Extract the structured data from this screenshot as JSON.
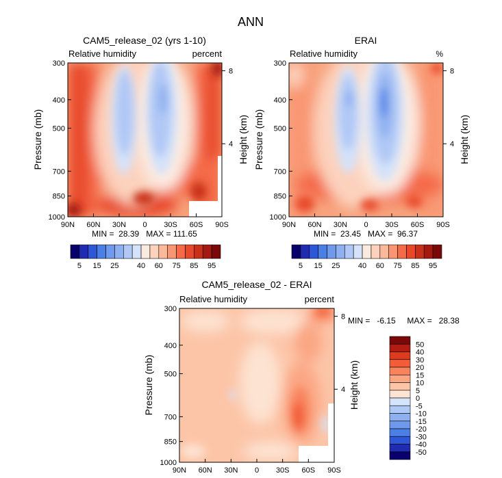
{
  "figure_title": "ANN",
  "chart_data": [
    {
      "type": "heatmap",
      "title": "CAM5_release_02 (yrs 1-10)",
      "left_string": "Relative humidity",
      "right_string": "percent",
      "ylabel": "Pressure (mb)",
      "ylabel_right": "Height (km)",
      "x_ticks": [
        "90N",
        "60N",
        "30N",
        "0",
        "30S",
        "60S",
        "90S"
      ],
      "y_ticks": [
        "300",
        "400",
        "500",
        "700",
        "850",
        "1000"
      ],
      "y_right_ticks": [
        "8",
        "4"
      ],
      "stats": "MIN =  28.39   MAX = 111.65",
      "contour_levels": [
        5,
        10,
        15,
        20,
        25,
        30,
        35,
        40,
        50,
        60,
        70,
        75,
        80,
        85,
        90,
        95
      ],
      "colorbar_labels": [
        "5",
        "15",
        "25",
        "40",
        "60",
        "75",
        "85",
        "95"
      ]
    },
    {
      "type": "heatmap",
      "title": "ERAI",
      "left_string": "Relative humidity",
      "right_string": "%",
      "ylabel": "Pressure (mb)",
      "ylabel_right": "Height (km)",
      "x_ticks": [
        "90N",
        "60N",
        "30N",
        "0",
        "30S",
        "60S",
        "90S"
      ],
      "y_ticks": [
        "300",
        "400",
        "500",
        "700",
        "850",
        "1000"
      ],
      "y_right_ticks": [
        "8",
        "4"
      ],
      "stats": "MIN =  23.45   MAX =  96.37",
      "contour_levels": [
        5,
        10,
        15,
        20,
        25,
        30,
        35,
        40,
        50,
        60,
        70,
        75,
        80,
        85,
        90,
        95
      ],
      "colorbar_labels": [
        "5",
        "15",
        "25",
        "40",
        "60",
        "75",
        "85",
        "95"
      ]
    },
    {
      "type": "heatmap",
      "title": "CAM5_release_02 - ERAI",
      "left_string": "Relative humidity",
      "right_string": "percent",
      "ylabel": "Pressure (mb)",
      "ylabel_right": "Height (km)",
      "x_ticks": [
        "90N",
        "60N",
        "30N",
        "0",
        "30S",
        "60S",
        "90S"
      ],
      "y_ticks": [
        "300",
        "400",
        "500",
        "700",
        "850",
        "1000"
      ],
      "y_right_ticks": [
        "8",
        "4"
      ],
      "stats": "MIN =   -6.15     MAX =   28.38",
      "contour_levels": [
        -50,
        -40,
        -30,
        -20,
        -15,
        -10,
        -5,
        0,
        5,
        10,
        15,
        20,
        30,
        40,
        50
      ],
      "colorbar_labels": [
        "50",
        "40",
        "30",
        "20",
        "15",
        "10",
        "5",
        "0",
        "-5",
        "-10",
        "-15",
        "-20",
        "-30",
        "-40",
        "-50"
      ]
    }
  ],
  "colors": {
    "abs_scale": [
      "#08006b",
      "#1f2cb0",
      "#2d57d6",
      "#4a7fe6",
      "#6e99ec",
      "#8fb0f0",
      "#b0c8f5",
      "#d4e2fa",
      "#fbeae0",
      "#fcd2bd",
      "#fcb99a",
      "#f99672",
      "#f46b48",
      "#e8492a",
      "#c93019",
      "#a41a10",
      "#7a0808"
    ],
    "diff_scale": [
      "#7a0808",
      "#b11c13",
      "#de3b1e",
      "#f25c36",
      "#f8845f",
      "#fba683",
      "#fcc5a8",
      "#fde3d2",
      "#d4e4fa",
      "#b0c8f5",
      "#8fb0f0",
      "#6e99ec",
      "#4a7fe6",
      "#2d57d6",
      "#1f2cb0",
      "#08006b"
    ]
  }
}
